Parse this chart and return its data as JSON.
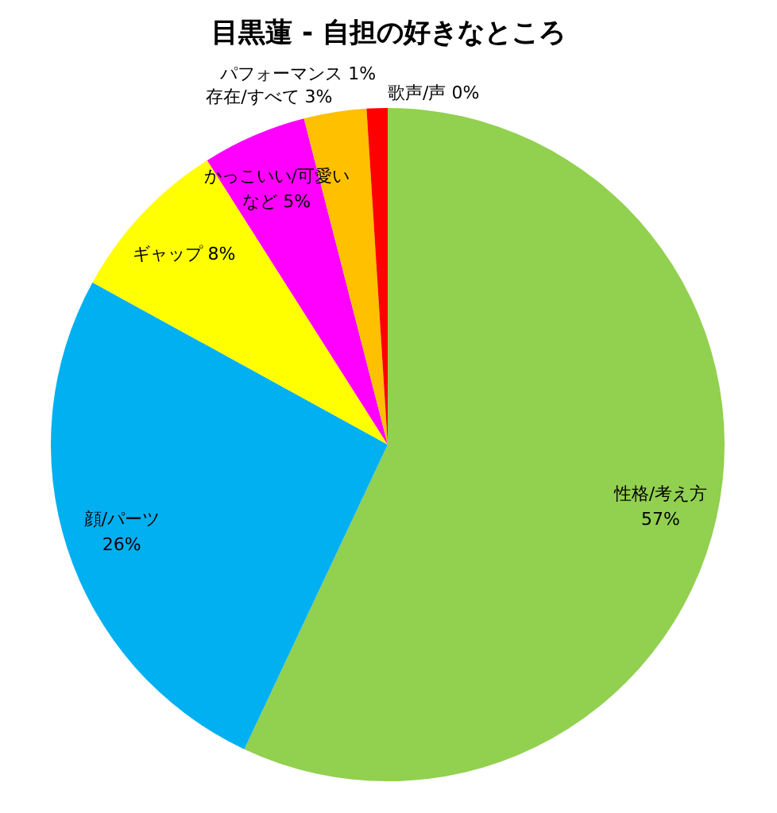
{
  "chart_data": {
    "type": "pie",
    "title": "目黒蓮 - 自担の好きなところ",
    "categories": [
      "性格/考え方",
      "顔/パーツ",
      "ギャップ",
      "かっこいい/可愛いなど",
      "存在/すべて",
      "パフォーマンス",
      "歌声/声"
    ],
    "values": [
      57,
      26,
      8,
      5,
      3,
      1,
      0
    ],
    "value_labels": [
      "57%",
      "26%",
      "8%",
      "5%",
      "3%",
      "1%",
      "0%"
    ],
    "colors": [
      "#92d050",
      "#00b0f0",
      "#ffff00",
      "#ff00ff",
      "#ffc000",
      "#ff0000",
      "#0070c0"
    ]
  }
}
